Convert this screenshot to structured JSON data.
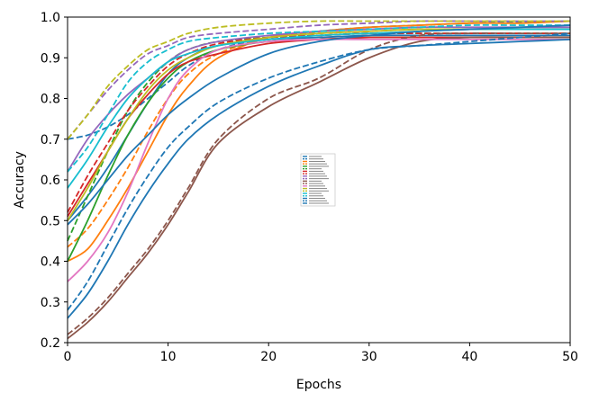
{
  "chart_data": {
    "type": "line",
    "xlabel": "Epochs",
    "ylabel": "Accuracy",
    "xlim": [
      0,
      50
    ],
    "ylim": [
      0.2,
      1.0
    ],
    "x_ticks": [
      0,
      10,
      20,
      30,
      40,
      50
    ],
    "y_ticks": [
      0.2,
      0.3,
      0.4,
      0.5,
      0.6,
      0.7,
      0.8,
      0.9,
      1.0
    ],
    "grid": false,
    "legend": {
      "placement": "center",
      "entries": 20,
      "legible": false
    },
    "x": [
      0,
      2,
      4,
      6,
      8,
      10,
      12,
      15,
      20,
      25,
      30,
      35,
      40,
      45,
      50
    ],
    "series": [
      {
        "color": "#1f77b4",
        "dash": "solid",
        "values": [
          0.5,
          0.56,
          0.63,
          0.71,
          0.79,
          0.86,
          0.9,
          0.93,
          0.945,
          0.95,
          0.955,
          0.955,
          0.955,
          0.955,
          0.955
        ]
      },
      {
        "color": "#1f77b4",
        "dash": "dashed",
        "values": [
          0.7,
          0.71,
          0.73,
          0.76,
          0.8,
          0.84,
          0.88,
          0.92,
          0.95,
          0.965,
          0.975,
          0.98,
          0.985,
          0.987,
          0.99
        ]
      },
      {
        "color": "#ff7f0e",
        "dash": "solid",
        "values": [
          0.4,
          0.43,
          0.5,
          0.58,
          0.67,
          0.76,
          0.83,
          0.9,
          0.95,
          0.965,
          0.975,
          0.98,
          0.985,
          0.985,
          0.99
        ]
      },
      {
        "color": "#ff7f0e",
        "dash": "dashed",
        "values": [
          0.435,
          0.48,
          0.55,
          0.63,
          0.72,
          0.8,
          0.86,
          0.91,
          0.95,
          0.96,
          0.965,
          0.97,
          0.97,
          0.97,
          0.97
        ]
      },
      {
        "color": "#2ca02c",
        "dash": "solid",
        "values": [
          0.4,
          0.5,
          0.61,
          0.71,
          0.79,
          0.85,
          0.89,
          0.92,
          0.94,
          0.945,
          0.95,
          0.95,
          0.95,
          0.95,
          0.95
        ]
      },
      {
        "color": "#2ca02c",
        "dash": "dashed",
        "values": [
          0.45,
          0.56,
          0.67,
          0.77,
          0.84,
          0.89,
          0.92,
          0.94,
          0.95,
          0.955,
          0.96,
          0.96,
          0.96,
          0.96,
          0.96
        ]
      },
      {
        "color": "#d62728",
        "dash": "solid",
        "values": [
          0.51,
          0.59,
          0.67,
          0.75,
          0.81,
          0.86,
          0.89,
          0.91,
          0.935,
          0.945,
          0.95,
          0.95,
          0.95,
          0.95,
          0.95
        ]
      },
      {
        "color": "#d62728",
        "dash": "dashed",
        "values": [
          0.52,
          0.61,
          0.69,
          0.77,
          0.83,
          0.88,
          0.91,
          0.935,
          0.95,
          0.955,
          0.96,
          0.96,
          0.96,
          0.96,
          0.96
        ]
      },
      {
        "color": "#9467bd",
        "dash": "solid",
        "values": [
          0.62,
          0.7,
          0.76,
          0.81,
          0.85,
          0.89,
          0.92,
          0.94,
          0.955,
          0.965,
          0.97,
          0.975,
          0.975,
          0.975,
          0.975
        ]
      },
      {
        "color": "#9467bd",
        "dash": "dashed",
        "values": [
          0.7,
          0.76,
          0.82,
          0.87,
          0.91,
          0.93,
          0.95,
          0.96,
          0.97,
          0.98,
          0.985,
          0.99,
          0.99,
          0.99,
          0.99
        ]
      },
      {
        "color": "#8c564b",
        "dash": "solid",
        "values": [
          0.21,
          0.25,
          0.3,
          0.36,
          0.42,
          0.49,
          0.57,
          0.69,
          0.78,
          0.84,
          0.9,
          0.94,
          0.95,
          0.95,
          0.95
        ]
      },
      {
        "color": "#8c564b",
        "dash": "dashed",
        "values": [
          0.22,
          0.26,
          0.31,
          0.37,
          0.43,
          0.5,
          0.58,
          0.7,
          0.8,
          0.85,
          0.92,
          0.955,
          0.96,
          0.96,
          0.96
        ]
      },
      {
        "color": "#e377c2",
        "dash": "solid",
        "values": [
          0.35,
          0.4,
          0.47,
          0.57,
          0.69,
          0.8,
          0.87,
          0.92,
          0.94,
          0.945,
          0.945,
          0.945,
          0.945,
          0.945,
          0.945
        ]
      },
      {
        "color": "#bcbd22",
        "dash": "solid",
        "values": [
          0.5,
          0.58,
          0.67,
          0.75,
          0.82,
          0.87,
          0.9,
          0.93,
          0.95,
          0.96,
          0.965,
          0.97,
          0.97,
          0.97,
          0.97
        ]
      },
      {
        "color": "#bcbd22",
        "dash": "dashed",
        "values": [
          0.7,
          0.76,
          0.83,
          0.88,
          0.92,
          0.94,
          0.96,
          0.975,
          0.985,
          0.99,
          0.99,
          0.99,
          0.99,
          0.99,
          0.99
        ]
      },
      {
        "color": "#17becf",
        "dash": "solid",
        "values": [
          0.58,
          0.65,
          0.73,
          0.8,
          0.85,
          0.89,
          0.91,
          0.93,
          0.945,
          0.955,
          0.96,
          0.965,
          0.97,
          0.97,
          0.97
        ]
      },
      {
        "color": "#17becf",
        "dash": "dashed",
        "values": [
          0.62,
          0.68,
          0.76,
          0.84,
          0.89,
          0.92,
          0.94,
          0.95,
          0.96,
          0.965,
          0.97,
          0.975,
          0.98,
          0.98,
          0.98
        ]
      },
      {
        "color": "#1f77b4",
        "dash": "solid",
        "values": [
          0.26,
          0.32,
          0.4,
          0.49,
          0.57,
          0.64,
          0.7,
          0.76,
          0.83,
          0.88,
          0.92,
          0.93,
          0.935,
          0.94,
          0.945
        ]
      },
      {
        "color": "#1f77b4",
        "dash": "dashed",
        "values": [
          0.28,
          0.35,
          0.44,
          0.53,
          0.61,
          0.68,
          0.73,
          0.79,
          0.85,
          0.89,
          0.92,
          0.93,
          0.94,
          0.95,
          0.96
        ]
      },
      {
        "color": "#1f77b4",
        "dash": "solid",
        "values": [
          0.49,
          0.54,
          0.6,
          0.66,
          0.71,
          0.76,
          0.8,
          0.85,
          0.91,
          0.94,
          0.955,
          0.965,
          0.97,
          0.975,
          0.98
        ]
      }
    ]
  }
}
